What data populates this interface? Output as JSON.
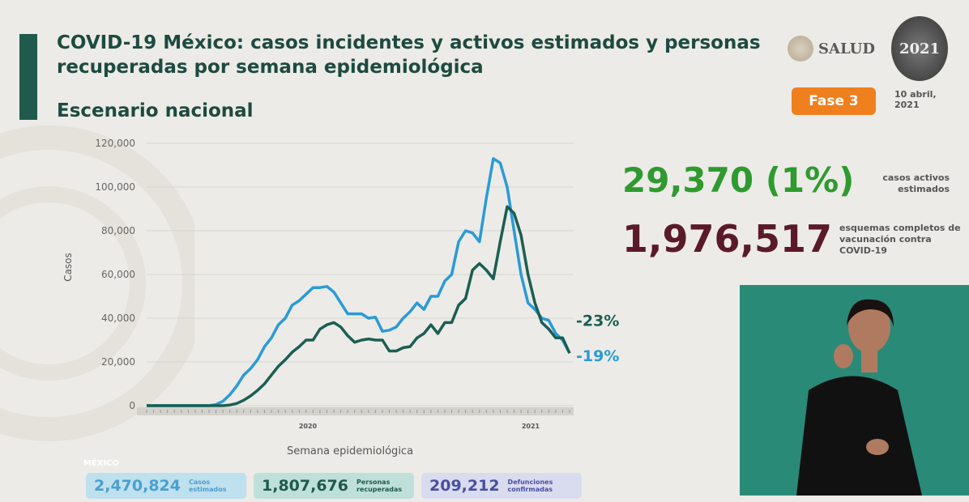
{
  "header": {
    "title": "COVID-19 México: casos incidentes y activos estimados y personas recuperadas por semana epidemiológica",
    "subtitle": "Escenario nacional",
    "logo_text": "SALUD",
    "logo_year": "2021",
    "phase": "Fase 3",
    "date": "10 abril, 2021"
  },
  "stats": {
    "active_value": "29,370 (1%)",
    "active_label": "casos activos estimados",
    "vaccine_value": "1,976,517",
    "vaccine_label": "esquemas completos de vacunación contra COVID-19"
  },
  "footer": {
    "logo_text": "MÉXICO",
    "badges": [
      {
        "value": "2,470,824",
        "label": "Casos estimados",
        "color": "#4a9fd0",
        "bg": "#bfe0ee"
      },
      {
        "value": "1,807,676",
        "label": "Personas recuperadas",
        "color": "#1f5a4c",
        "bg": "#bfe0da"
      },
      {
        "value": "209,212",
        "label": "Defunciones confirmadas",
        "color": "#4a4fa0",
        "bg": "#d9dcef"
      }
    ]
  },
  "colors": {
    "estimated": "#2a9ad8",
    "active": "#1b5e52",
    "accent": "#1f5a4c",
    "phase": "#f0801e",
    "active_stat": "#2f9a2f",
    "vaccine_stat": "#5a1a28"
  },
  "chart_data": {
    "type": "line",
    "xlabel": "Semana epidemiológica",
    "ylabel": "Casos",
    "ylim": [
      0,
      120000
    ],
    "yticks": [
      "0",
      "20,000",
      "40,000",
      "60,000",
      "80,000",
      "100,000",
      "120,000"
    ],
    "year_labels": [
      "2020",
      "2021"
    ],
    "grid": true,
    "series": [
      {
        "values": [
          0,
          0,
          0,
          0,
          0,
          0,
          0,
          0,
          0,
          0,
          500,
          2000,
          5000,
          9000,
          14000,
          17000,
          21000,
          27000,
          31000,
          37000,
          40000,
          46000,
          48000,
          51000,
          54000,
          54000,
          54500,
          52000,
          47000,
          42000,
          42000,
          42000,
          40000,
          40500,
          34000,
          34500,
          36000,
          40000,
          43000,
          47000,
          44000,
          50000,
          50000,
          57000,
          60000,
          75000,
          80000,
          79000,
          75000,
          95000,
          113000,
          111000,
          100000,
          80000,
          60000,
          47000,
          44000,
          40000,
          39000,
          33000,
          30000,
          24000
        ],
        "color": "#2a9ad8",
        "end_label": "-19%"
      },
      {
        "values": [
          0,
          0,
          0,
          0,
          0,
          0,
          0,
          0,
          0,
          0,
          0,
          0,
          300,
          1000,
          2500,
          4500,
          7000,
          10000,
          14000,
          18000,
          21000,
          24500,
          27000,
          30000,
          30000,
          35000,
          37000,
          38000,
          36000,
          32000,
          29000,
          30000,
          30500,
          30000,
          30000,
          25000,
          25000,
          26500,
          27000,
          31000,
          33000,
          37000,
          33000,
          38000,
          38000,
          46000,
          49000,
          62000,
          65000,
          62000,
          58000,
          75000,
          91000,
          88000,
          78000,
          60000,
          47000,
          38000,
          35000,
          31000,
          31000,
          24000
        ],
        "color": "#1b5e52",
        "end_label": "-23%"
      }
    ]
  }
}
